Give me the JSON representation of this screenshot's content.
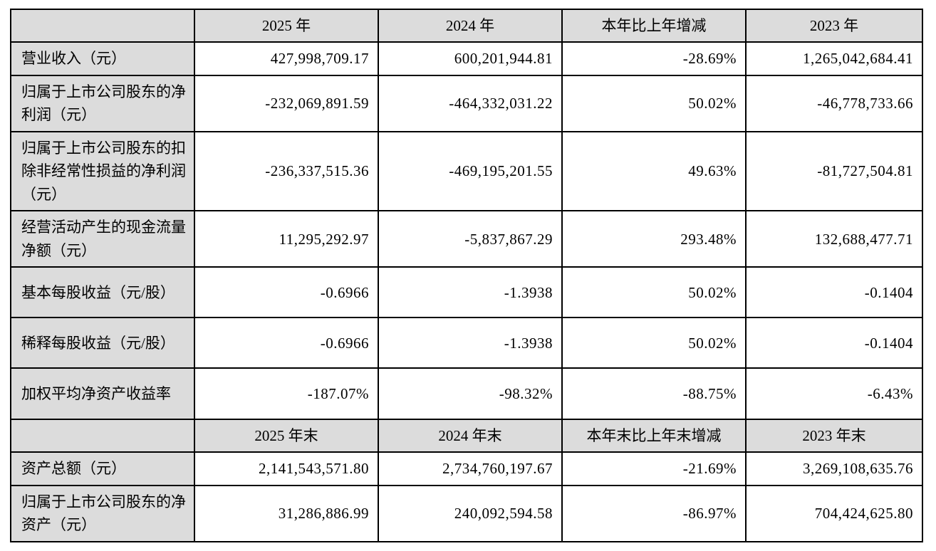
{
  "colors": {
    "header_bg": "#dcdcdc",
    "border": "#000000",
    "cell_bg": "#ffffff",
    "text": "#000000"
  },
  "table": {
    "sections": [
      {
        "header": [
          "",
          "2025 年",
          "2024 年",
          "本年比上年增减",
          "2023 年"
        ],
        "rows": [
          {
            "label": "营业收入（元）",
            "values": [
              "427,998,709.17",
              "600,201,944.81",
              "-28.69%",
              "1,265,042,684.41"
            ]
          },
          {
            "label": "归属于上市公司股东的净利润（元）",
            "values": [
              "-232,069,891.59",
              "-464,332,031.22",
              "50.02%",
              "-46,778,733.66"
            ]
          },
          {
            "label": "归属于上市公司股东的扣除非经常性损益的净利润（元）",
            "values": [
              "-236,337,515.36",
              "-469,195,201.55",
              "49.63%",
              "-81,727,504.81"
            ]
          },
          {
            "label": "经营活动产生的现金流量净额（元）",
            "values": [
              "11,295,292.97",
              "-5,837,867.29",
              "293.48%",
              "132,688,477.71"
            ]
          },
          {
            "label": "基本每股收益（元/股）",
            "values": [
              "-0.6966",
              "-1.3938",
              "50.02%",
              "-0.1404"
            ]
          },
          {
            "label": "稀释每股收益（元/股）",
            "values": [
              "-0.6966",
              "-1.3938",
              "50.02%",
              "-0.1404"
            ]
          },
          {
            "label": "加权平均净资产收益率",
            "values": [
              "-187.07%",
              "-98.32%",
              "-88.75%",
              "-6.43%"
            ]
          }
        ]
      },
      {
        "header": [
          "",
          "2025 年末",
          "2024 年末",
          "本年末比上年末增减",
          "2023 年末"
        ],
        "rows": [
          {
            "label": "资产总额（元）",
            "values": [
              "2,141,543,571.80",
              "2,734,760,197.67",
              "-21.69%",
              "3,269,108,635.76"
            ]
          },
          {
            "label": "归属于上市公司股东的净资产（元）",
            "values": [
              "31,286,886.99",
              "240,092,594.58",
              "-86.97%",
              "704,424,625.80"
            ]
          }
        ]
      }
    ]
  }
}
